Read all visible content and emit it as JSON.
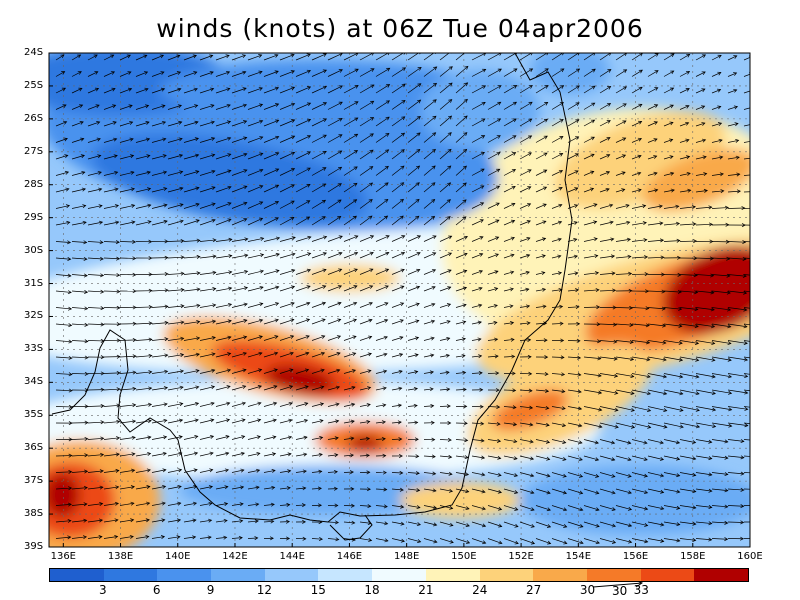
{
  "title": "winds (knots) at 06Z Tue 04apr2006",
  "lat_labels": [
    "24S",
    "25S",
    "26S",
    "27S",
    "28S",
    "29S",
    "30S",
    "31S",
    "32S",
    "33S",
    "34S",
    "35S",
    "36S",
    "37S",
    "38S",
    "39S"
  ],
  "lon_labels": [
    "136E",
    "138E",
    "140E",
    "142E",
    "144E",
    "146E",
    "148E",
    "150E",
    "152E",
    "154E",
    "156E",
    "158E",
    "160E"
  ],
  "colorbar": {
    "labels": [
      "3",
      "6",
      "9",
      "12",
      "15",
      "18",
      "21",
      "24",
      "27",
      "30",
      "33"
    ],
    "colors": [
      "#1f5fcf",
      "#2f78e0",
      "#4a92ee",
      "#6aacf5",
      "#96c8fb",
      "#c6e6ff",
      "#f0fbff",
      "#fff3b8",
      "#fdd27a",
      "#f9a94a",
      "#f57a28",
      "#ec4a16",
      "#b00000"
    ]
  },
  "reference_vector": {
    "label": "30"
  },
  "colors": {
    "land_boundary": "#000000",
    "grid": "#666666",
    "arrow": "#000000"
  },
  "chart_data": {
    "type": "heatmap",
    "title": "winds (knots) at 06Z Tue 04apr2006",
    "variable": "wind speed (knots)",
    "lat_range": [
      -39,
      -24
    ],
    "lon_range": [
      135.5,
      160
    ],
    "contour_levels": [
      3,
      6,
      9,
      12,
      15,
      18,
      21,
      24,
      27,
      30,
      33
    ],
    "grid": true,
    "wind_maxima": [
      {
        "lat": -31.8,
        "lon": 158.5,
        "speed": 33
      },
      {
        "lat": -34.0,
        "lon": 144.3,
        "speed": 33
      },
      {
        "lat": -37.5,
        "lon": 136.0,
        "speed": 33
      },
      {
        "lat": -35.8,
        "lon": 146.0,
        "speed": 30
      },
      {
        "lat": -32.2,
        "lon": 153.7,
        "speed": 30
      },
      {
        "lat": -34.9,
        "lon": 151.5,
        "speed": 30
      }
    ],
    "wind_minima": [
      {
        "lat": -28.0,
        "lon": 144.5,
        "speed": 3
      },
      {
        "lat": -25.0,
        "lon": 138.5,
        "speed": 4
      },
      {
        "lat": -24.3,
        "lon": 151.5,
        "speed": 6
      }
    ]
  }
}
